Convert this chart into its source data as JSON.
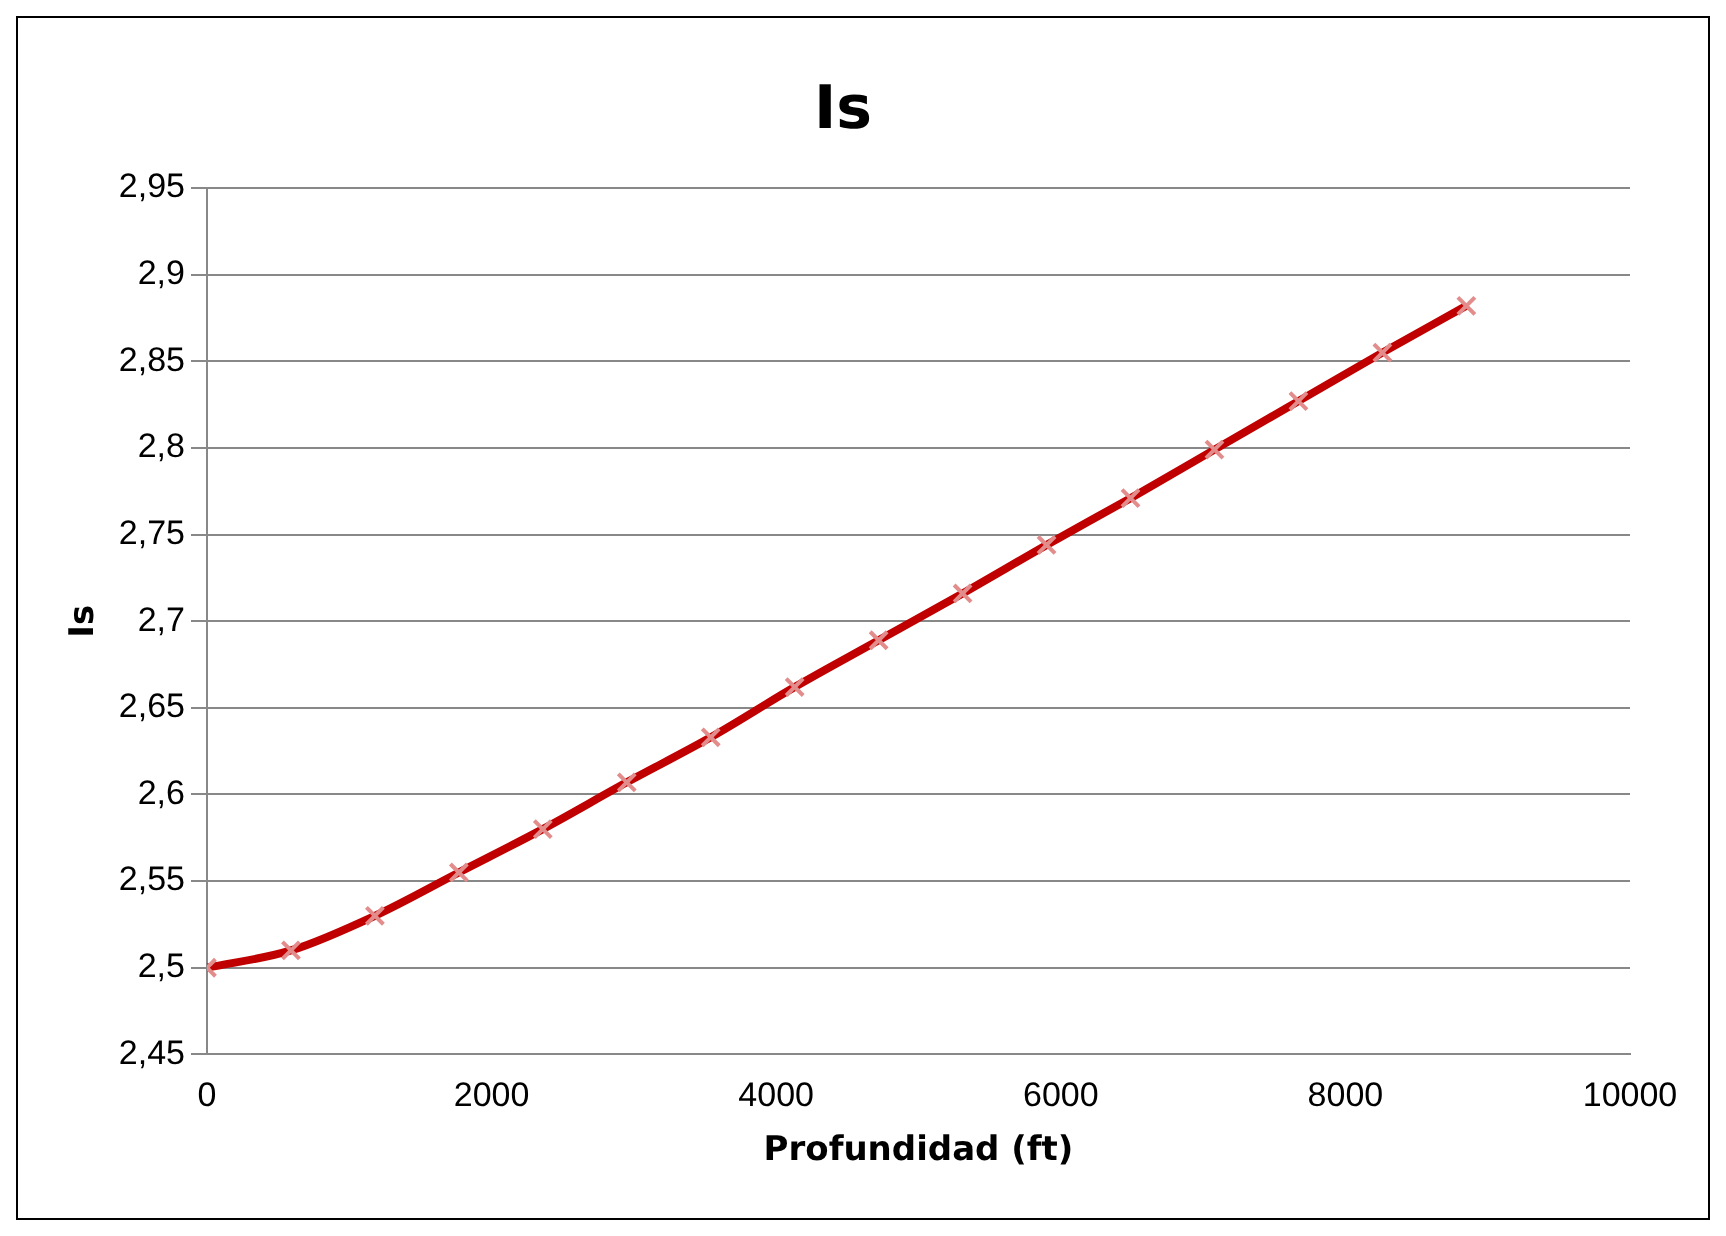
{
  "chart_data": {
    "type": "line",
    "title": "Is",
    "xlabel": "Profundidad (ft)",
    "ylabel": "Is",
    "x": [
      0,
      590,
      1180,
      1770,
      2360,
      2950,
      3540,
      4130,
      4720,
      5310,
      5900,
      6490,
      7080,
      7670,
      8260,
      8850
    ],
    "series": [
      {
        "color": "#c00000",
        "values": [
          2.5,
          2.51,
          2.53,
          2.555,
          2.58,
          2.607,
          2.633,
          2.662,
          2.689,
          2.716,
          2.744,
          2.771,
          2.799,
          2.827,
          2.855,
          2.882
        ]
      }
    ],
    "xlim": [
      0,
      10000
    ],
    "xticks": [
      0,
      2000,
      4000,
      6000,
      8000,
      10000
    ],
    "ylim": [
      2.45,
      2.95
    ],
    "yticks": [
      {
        "value": 2.45,
        "label": "2,45"
      },
      {
        "value": 2.5,
        "label": "2,5"
      },
      {
        "value": 2.55,
        "label": "2,55"
      },
      {
        "value": 2.6,
        "label": "2,6"
      },
      {
        "value": 2.65,
        "label": "2,65"
      },
      {
        "value": 2.7,
        "label": "2,7"
      },
      {
        "value": 2.75,
        "label": "2,75"
      },
      {
        "value": 2.8,
        "label": "2,8"
      },
      {
        "value": 2.85,
        "label": "2,85"
      },
      {
        "value": 2.9,
        "label": "2,9"
      },
      {
        "value": 2.95,
        "label": "2,95"
      }
    ],
    "grid": "y",
    "legend": false,
    "marker": "cross",
    "line_style": "solid"
  }
}
